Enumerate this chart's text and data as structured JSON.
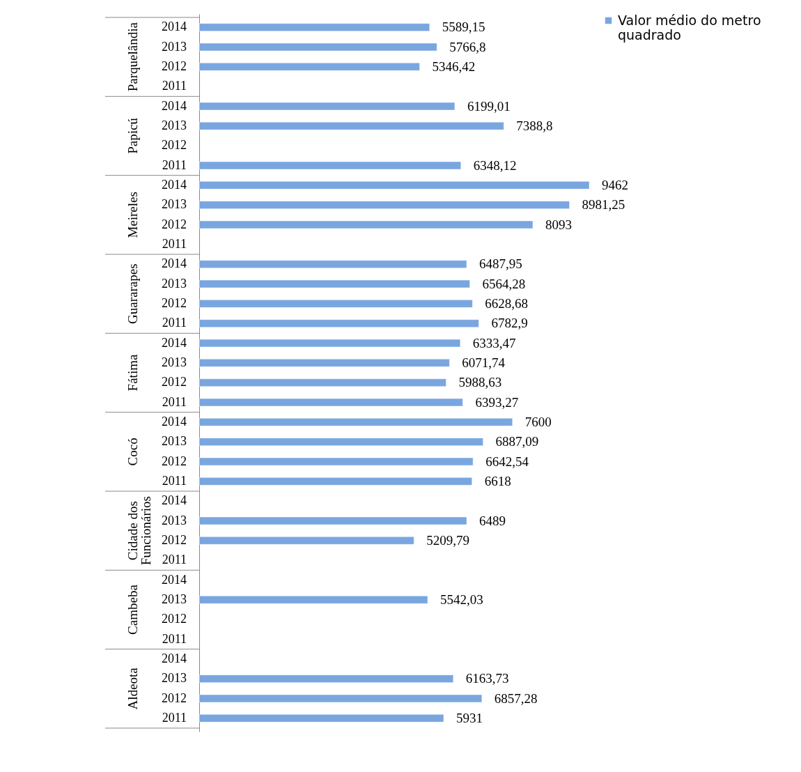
{
  "chart_data": {
    "type": "bar",
    "orientation": "horizontal",
    "categories": [
      "2014",
      "2013",
      "2012",
      "2011",
      "2014",
      "2013",
      "2012",
      "2011",
      "2014",
      "2013",
      "2012",
      "2011",
      "2014",
      "2013",
      "2012",
      "2011",
      "2014",
      "2013",
      "2012",
      "2011",
      "2014",
      "2013",
      "2012",
      "2011",
      "2014",
      "2013",
      "2012",
      "2011",
      "2014",
      "2013",
      "2012",
      "2011",
      "2014",
      "2013",
      "2012",
      "2011"
    ],
    "annotations": [
      "Parquelândia",
      "Papicú",
      "Meireles",
      "Guararapes",
      "Fátima",
      "Cocó",
      "Cidade dos Funcionários",
      "Cambeba",
      "Aldeota"
    ],
    "series": [
      {
        "name": "Valor médio do metro quadrado",
        "color": "#7aa6e0",
        "values": [
          5589.15,
          5766.8,
          5346.42,
          null,
          6199.01,
          7388.8,
          null,
          6348.12,
          9462,
          8981.25,
          8093,
          null,
          6487.95,
          6564.28,
          6628.68,
          6782.9,
          6333.47,
          6071.74,
          5988.63,
          6393.27,
          7600,
          6887.09,
          6642.54,
          6618,
          null,
          6489,
          5209.79,
          null,
          null,
          5542.03,
          null,
          null,
          null,
          6163.73,
          6857.28,
          5931
        ],
        "value_labels": [
          "5589,15",
          "5766,8",
          "5346,42",
          null,
          "6199,01",
          "7388,8",
          null,
          "6348,12",
          "9462",
          "8981,25",
          "8093",
          null,
          "6487,95",
          "6564,28",
          "6628,68",
          "6782,9",
          "6333,47",
          "6071,74",
          "5988,63",
          "6393,27",
          "7600",
          "6887,09",
          "6642,54",
          "6618",
          null,
          "6489",
          "5209,79",
          null,
          null,
          "5542,03",
          null,
          null,
          null,
          "6163,73",
          "6857,28",
          "5931"
        ]
      }
    ],
    "grid": false,
    "legend": "right"
  }
}
